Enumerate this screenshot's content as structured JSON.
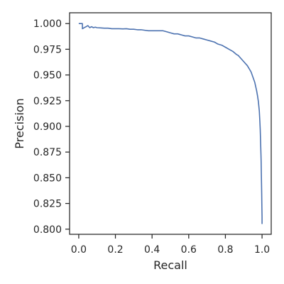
{
  "chart_data": {
    "type": "line",
    "title": "",
    "xlabel": "Recall",
    "ylabel": "Precision",
    "xlim": [
      -0.05,
      1.05
    ],
    "ylim": [
      0.795,
      1.0105
    ],
    "x_ticks": [
      0.0,
      0.2,
      0.4,
      0.6,
      0.8,
      1.0
    ],
    "x_tick_labels": [
      "0.0",
      "0.2",
      "0.4",
      "0.6",
      "0.8",
      "1.0"
    ],
    "y_ticks": [
      0.8,
      0.825,
      0.85,
      0.875,
      0.9,
      0.925,
      0.95,
      0.975,
      1.0
    ],
    "y_tick_labels": [
      "0.800",
      "0.825",
      "0.850",
      "0.875",
      "0.900",
      "0.925",
      "0.950",
      "0.975",
      "1.000"
    ],
    "grid": false,
    "legend": "none",
    "line_color": "#4c72b0",
    "series": [
      {
        "x": [
          0.0,
          0.02,
          0.02,
          0.03,
          0.04,
          0.05,
          0.06,
          0.07,
          0.08,
          0.09,
          0.1,
          0.12,
          0.14,
          0.16,
          0.18,
          0.2,
          0.22,
          0.24,
          0.26,
          0.28,
          0.3,
          0.32,
          0.34,
          0.36,
          0.38,
          0.4,
          0.42,
          0.44,
          0.46,
          0.48,
          0.5,
          0.52,
          0.54,
          0.56,
          0.58,
          0.6,
          0.62,
          0.64,
          0.66,
          0.68,
          0.7,
          0.72,
          0.74,
          0.76,
          0.78,
          0.8,
          0.82,
          0.84,
          0.86,
          0.87,
          0.88,
          0.9,
          0.92,
          0.94,
          0.95,
          0.96,
          0.97,
          0.975,
          0.98,
          0.985,
          0.988,
          0.99,
          0.992,
          0.994,
          0.995,
          0.996,
          0.997,
          0.998,
          0.999,
          1.0,
          1.0
        ],
        "y": [
          1.0,
          1.0,
          0.995,
          0.996,
          0.997,
          0.998,
          0.996,
          0.997,
          0.996,
          0.9965,
          0.996,
          0.9958,
          0.9955,
          0.9955,
          0.995,
          0.995,
          0.995,
          0.9948,
          0.995,
          0.9945,
          0.9945,
          0.994,
          0.994,
          0.9935,
          0.993,
          0.993,
          0.993,
          0.993,
          0.993,
          0.992,
          0.991,
          0.99,
          0.99,
          0.989,
          0.988,
          0.988,
          0.987,
          0.986,
          0.986,
          0.985,
          0.984,
          0.983,
          0.982,
          0.98,
          0.979,
          0.977,
          0.975,
          0.973,
          0.97,
          0.969,
          0.967,
          0.963,
          0.959,
          0.953,
          0.948,
          0.943,
          0.935,
          0.93,
          0.924,
          0.915,
          0.905,
          0.897,
          0.885,
          0.873,
          0.866,
          0.855,
          0.845,
          0.835,
          0.822,
          0.812,
          0.805
        ]
      }
    ]
  }
}
